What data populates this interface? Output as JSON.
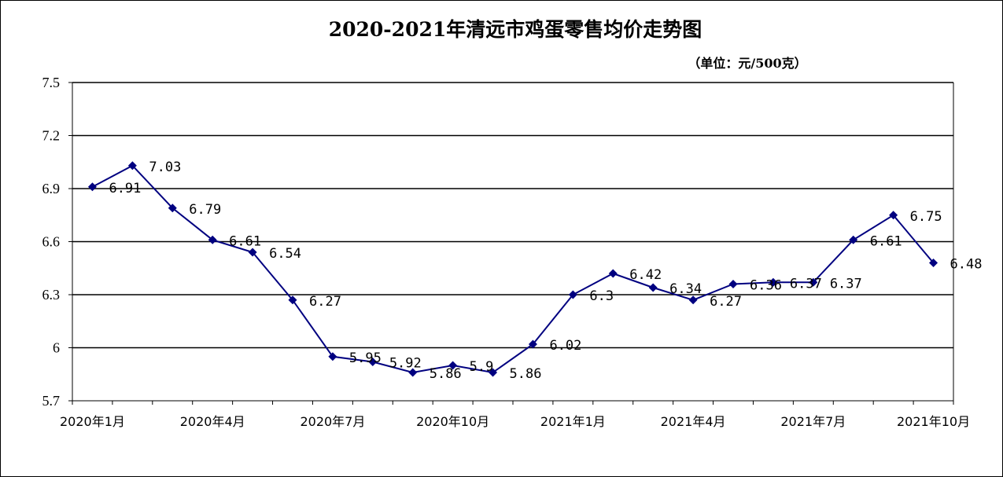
{
  "chart_data": {
    "type": "line",
    "title": "2020-2021年清远市鸡蛋零售均价走势图",
    "unit_label": "（单位：元/500克）",
    "ylim": [
      5.7,
      7.5
    ],
    "yticks": [
      "7.5",
      "7.2",
      "6.9",
      "6.6",
      "6.3",
      "6",
      "5.7"
    ],
    "grid": true,
    "legend": "none",
    "x_tick_labels": [
      "2020年1月",
      "2020年4月",
      "2020年7月",
      "2020年10月",
      "2021年1月",
      "2021年4月",
      "2021年7月",
      "2021年10月"
    ],
    "x": [
      "2020-01",
      "2020-02",
      "2020-03",
      "2020-04",
      "2020-05",
      "2020-06",
      "2020-07",
      "2020-08",
      "2020-09",
      "2020-10",
      "2020-11",
      "2020-12",
      "2021-01",
      "2021-02",
      "2021-03",
      "2021-04",
      "2021-05",
      "2021-06",
      "2021-07",
      "2021-08",
      "2021-09",
      "2021-10"
    ],
    "values": [
      6.91,
      7.03,
      6.79,
      6.61,
      6.54,
      6.27,
      5.95,
      5.92,
      5.86,
      5.9,
      5.86,
      6.02,
      6.3,
      6.42,
      6.34,
      6.27,
      6.36,
      6.37,
      6.37,
      6.61,
      6.75,
      6.48
    ],
    "data_labels": [
      "6.91",
      "7.03",
      "6.79",
      "6.61",
      "6.54",
      "6.27",
      "5.95",
      "5.92",
      "5.86",
      "5.9",
      "5.86",
      "6.02",
      "6.3",
      "6.42",
      "6.34",
      "6.27",
      "6.36",
      "6.37",
      "6.37",
      "6.61",
      "6.75",
      "6.48"
    ],
    "line_color": "#000080",
    "marker": "diamond"
  }
}
